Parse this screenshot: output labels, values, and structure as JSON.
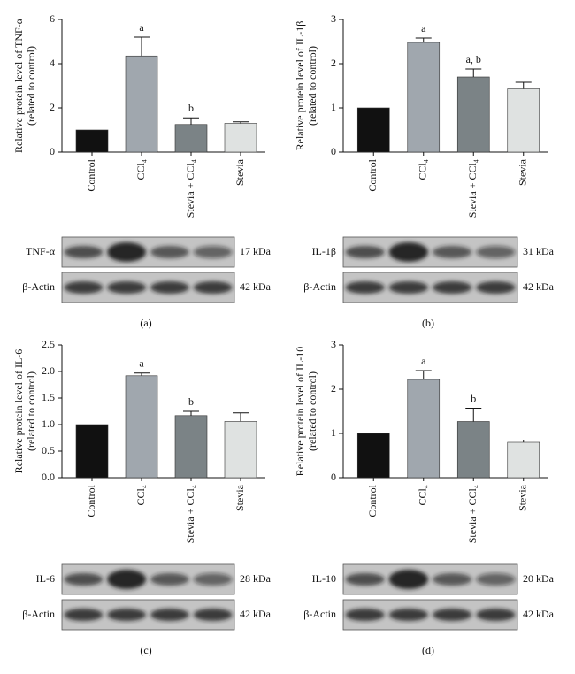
{
  "chart_data": [
    {
      "type": "bar",
      "panel": "(a)",
      "ylabel": [
        "Relative protein level of TNF-α",
        "(related to control)"
      ],
      "categories": [
        "Control",
        "CCl₄",
        "Stevia + CCl₄",
        "Stevia"
      ],
      "values": [
        1.0,
        4.35,
        1.25,
        1.3
      ],
      "errors": [
        null,
        0.85,
        0.3,
        0.07
      ],
      "annotations": [
        null,
        "a",
        "b",
        null
      ],
      "colors": [
        "#111111",
        "#a0a7ae",
        "#7b8386",
        "#dfe2e1"
      ],
      "ylim": [
        0,
        6
      ],
      "yticks": [
        0,
        2,
        4,
        6
      ],
      "blots": [
        {
          "label": "TNF-α",
          "size": "17 kDa"
        },
        {
          "label": "β-Actin",
          "size": "42 kDa"
        }
      ]
    },
    {
      "type": "bar",
      "panel": "(b)",
      "ylabel": [
        "Relative protein level of IL-1β",
        "(related to control)"
      ],
      "categories": [
        "Control",
        "CCl₄",
        "Stevia + CCl₄",
        "Stevia"
      ],
      "values": [
        1.0,
        2.48,
        1.7,
        1.43
      ],
      "errors": [
        null,
        0.1,
        0.18,
        0.15
      ],
      "annotations": [
        null,
        "a",
        "a, b",
        null
      ],
      "colors": [
        "#111111",
        "#a0a7ae",
        "#7b8386",
        "#dfe2e1"
      ],
      "ylim": [
        0,
        3
      ],
      "yticks": [
        0,
        1,
        2,
        3
      ],
      "blots": [
        {
          "label": "IL-1β",
          "size": "31 kDa"
        },
        {
          "label": "β-Actin",
          "size": "42 kDa"
        }
      ]
    },
    {
      "type": "bar",
      "panel": "(c)",
      "ylabel": [
        "Relative protein level of IL-6",
        "(related to control)"
      ],
      "categories": [
        "Control",
        "CCl₄",
        "Stevia + CCl₄",
        "Stevia"
      ],
      "values": [
        1.0,
        1.92,
        1.17,
        1.06
      ],
      "errors": [
        null,
        0.05,
        0.08,
        0.16
      ],
      "annotations": [
        null,
        "a",
        "b",
        null
      ],
      "colors": [
        "#111111",
        "#a0a7ae",
        "#7b8386",
        "#dfe2e1"
      ],
      "ylim": [
        0,
        2.5
      ],
      "yticks": [
        {
          "value": 0,
          "label": "0.0"
        },
        0.5,
        {
          "value": 1,
          "label": "1.0"
        },
        1.5,
        {
          "value": 2,
          "label": "2.0"
        },
        2.5
      ],
      "blots": [
        {
          "label": "IL-6",
          "size": "28 kDa"
        },
        {
          "label": "β-Actin",
          "size": "42 kDa"
        }
      ]
    },
    {
      "type": "bar",
      "panel": "(d)",
      "ylabel": [
        "Relative protein level of IL-10",
        "(related to control)"
      ],
      "categories": [
        "Control",
        "CCl₄",
        "Stevia + CCl₄",
        "Stevia"
      ],
      "values": [
        1.0,
        2.22,
        1.27,
        0.8
      ],
      "errors": [
        null,
        0.2,
        0.3,
        0.05
      ],
      "annotations": [
        null,
        "a",
        "b",
        null
      ],
      "colors": [
        "#111111",
        "#a0a7ae",
        "#7b8386",
        "#dfe2e1"
      ],
      "ylim": [
        0,
        3
      ],
      "yticks": [
        0,
        1,
        2,
        3
      ],
      "blots": [
        {
          "label": "IL-10",
          "size": "20 kDa"
        },
        {
          "label": "β-Actin",
          "size": "42 kDa"
        }
      ]
    }
  ]
}
